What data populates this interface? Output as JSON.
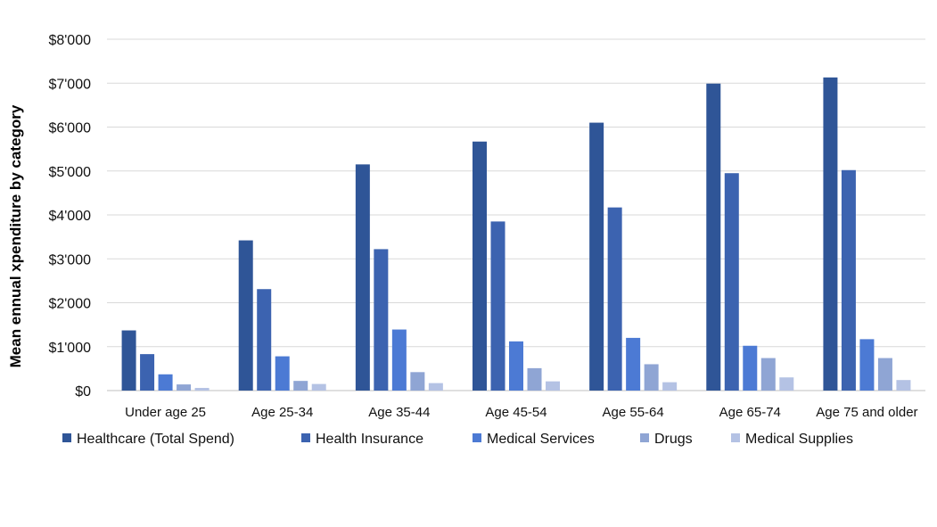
{
  "chart_data": {
    "type": "bar",
    "title": "",
    "xlabel": "",
    "ylabel": "Mean ennual xpenditure by category",
    "ylim": [
      0,
      8000
    ],
    "yticks": [
      0,
      1000,
      2000,
      3000,
      4000,
      5000,
      6000,
      7000,
      8000
    ],
    "ytick_labels": [
      "$0",
      "$1'000",
      "$2'000",
      "$3'000",
      "$4'000",
      "$5'000",
      "$6'000",
      "$7'000",
      "$8'000"
    ],
    "grid": true,
    "legend_position": "bottom",
    "categories": [
      "Under age 25",
      "Age 25-34",
      "Age 35-44",
      "Age 45-54",
      "Age 55-64",
      "Age 65-74",
      "Age 75 and older"
    ],
    "series": [
      {
        "name": "Healthcare (Total Spend)",
        "color": "#2f5597",
        "values": [
          1370,
          3420,
          5150,
          5670,
          6100,
          6990,
          7130
        ]
      },
      {
        "name": "Health Insurance",
        "color": "#3c63b0",
        "values": [
          830,
          2310,
          3220,
          3850,
          4170,
          4950,
          5020
        ]
      },
      {
        "name": "Medical Services",
        "color": "#4c7ad4",
        "values": [
          370,
          780,
          1390,
          1120,
          1200,
          1020,
          1170
        ]
      },
      {
        "name": "Drugs",
        "color": "#8fa5d4",
        "values": [
          140,
          220,
          420,
          510,
          600,
          740,
          740
        ]
      },
      {
        "name": "Medical Supplies",
        "color": "#b4c2e4",
        "values": [
          60,
          150,
          170,
          210,
          190,
          300,
          240
        ]
      }
    ]
  }
}
